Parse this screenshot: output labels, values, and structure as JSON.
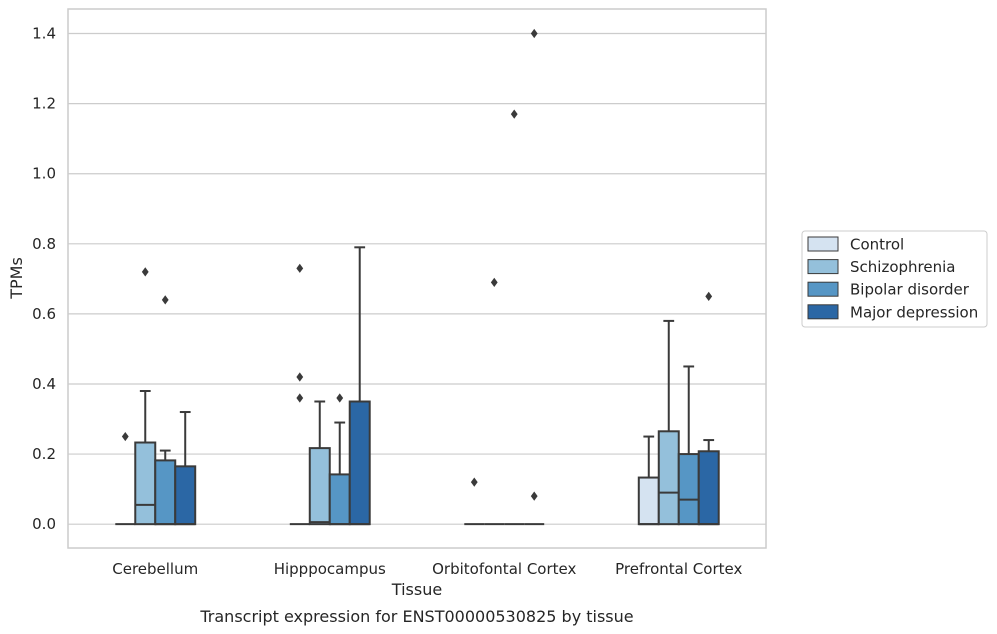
{
  "chart_data": {
    "type": "boxplot",
    "title": "",
    "caption": "Transcript expression for ENST00000530825 by tissue",
    "xlabel": "Tissue",
    "ylabel": "TPMs",
    "ylim": [
      -0.068,
      1.47
    ],
    "yticks": [
      0.0,
      0.2,
      0.4,
      0.6,
      0.8,
      1.0,
      1.2,
      1.4
    ],
    "ytick_labels": [
      "0.0",
      "0.2",
      "0.4",
      "0.6",
      "0.8",
      "1.0",
      "1.2",
      "1.4"
    ],
    "grid": "horizontal",
    "legend_position": "right",
    "categories": [
      "Cerebellum",
      "Hipppocampus",
      "Orbitofontal Cortex",
      "Prefrontal Cortex"
    ],
    "series": [
      {
        "name": "Control",
        "color": "#d5e3f1",
        "boxes": [
          {
            "min": 0.0,
            "q1": 0.0,
            "median": 0.0,
            "q3": 0.0,
            "max": 0.0,
            "outliers": [
              0.25
            ]
          },
          {
            "min": 0.0,
            "q1": 0.0,
            "median": 0.0,
            "q3": 0.0,
            "max": 0.0,
            "outliers": [
              0.73,
              0.42,
              0.36
            ]
          },
          {
            "min": 0.0,
            "q1": 0.0,
            "median": 0.0,
            "q3": 0.0,
            "max": 0.0,
            "outliers": [
              0.12
            ]
          },
          {
            "min": 0.0,
            "q1": 0.0,
            "median": 0.0,
            "q3": 0.133,
            "max": 0.25,
            "outliers": []
          }
        ]
      },
      {
        "name": "Schizophrenia",
        "color": "#94c0db",
        "boxes": [
          {
            "min": 0.0,
            "q1": 0.0,
            "median": 0.055,
            "q3": 0.233,
            "max": 0.38,
            "outliers": [
              0.72
            ]
          },
          {
            "min": 0.0,
            "q1": 0.0,
            "median": 0.006,
            "q3": 0.217,
            "max": 0.35,
            "outliers": []
          },
          {
            "min": 0.0,
            "q1": 0.0,
            "median": 0.0,
            "q3": 0.0,
            "max": 0.0,
            "outliers": [
              0.69
            ]
          },
          {
            "min": 0.0,
            "q1": 0.0,
            "median": 0.09,
            "q3": 0.265,
            "max": 0.58,
            "outliers": []
          }
        ]
      },
      {
        "name": "Bipolar disorder",
        "color": "#5696c5",
        "boxes": [
          {
            "min": 0.0,
            "q1": 0.0,
            "median": 0.0,
            "q3": 0.182,
            "max": 0.21,
            "outliers": [
              0.64
            ]
          },
          {
            "min": 0.0,
            "q1": 0.0,
            "median": 0.0,
            "q3": 0.142,
            "max": 0.29,
            "outliers": [
              0.36
            ]
          },
          {
            "min": 0.0,
            "q1": 0.0,
            "median": 0.0,
            "q3": 0.0,
            "max": 0.0,
            "outliers": [
              1.17
            ]
          },
          {
            "min": 0.0,
            "q1": 0.0,
            "median": 0.07,
            "q3": 0.2,
            "max": 0.45,
            "outliers": []
          }
        ]
      },
      {
        "name": "Major depression",
        "color": "#2b67a5",
        "boxes": [
          {
            "min": 0.0,
            "q1": 0.0,
            "median": 0.0,
            "q3": 0.165,
            "max": 0.32,
            "outliers": []
          },
          {
            "min": 0.0,
            "q1": 0.0,
            "median": 0.0,
            "q3": 0.35,
            "max": 0.79,
            "outliers": []
          },
          {
            "min": 0.0,
            "q1": 0.0,
            "median": 0.0,
            "q3": 0.0,
            "max": 0.0,
            "outliers": [
              1.4,
              0.08
            ]
          },
          {
            "min": 0.0,
            "q1": 0.0,
            "median": 0.0,
            "q3": 0.208,
            "max": 0.24,
            "outliers": [
              0.65
            ]
          }
        ]
      }
    ]
  }
}
